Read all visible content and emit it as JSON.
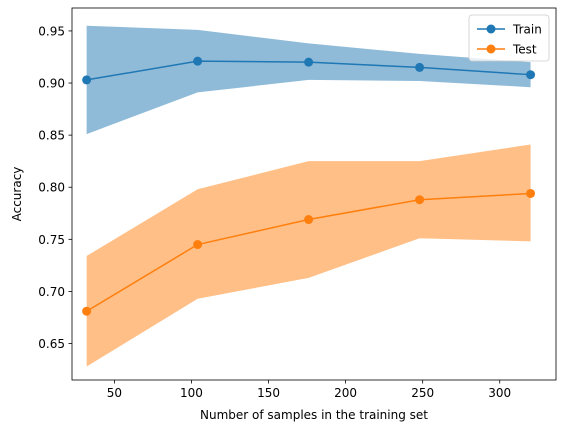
{
  "chart_data": {
    "type": "line",
    "title": "",
    "xlabel": "Number of samples in the training set",
    "ylabel": "Accuracy",
    "xlim": [
      22.5,
      336.5
    ],
    "ylim": [
      0.615,
      0.972
    ],
    "x": [
      32,
      104,
      176,
      248,
      320
    ],
    "xticks": [
      50,
      100,
      150,
      200,
      250,
      300
    ],
    "yticks": [
      0.65,
      0.7,
      0.75,
      0.8,
      0.85,
      0.9,
      0.95
    ],
    "ytick_labels": [
      "0.65",
      "0.70",
      "0.75",
      "0.80",
      "0.85",
      "0.90",
      "0.95"
    ],
    "legend_position": "top-right",
    "grid": false,
    "series": [
      {
        "name": "Train",
        "color": "#1f77b4",
        "band_color": "#1f77b4",
        "values": [
          0.903,
          0.921,
          0.92,
          0.915,
          0.908
        ],
        "band_lower": [
          0.851,
          0.891,
          0.903,
          0.902,
          0.896
        ],
        "band_upper": [
          0.955,
          0.951,
          0.938,
          0.928,
          0.92
        ]
      },
      {
        "name": "Test",
        "color": "#ff7f0e",
        "band_color": "#ff7f0e",
        "values": [
          0.681,
          0.745,
          0.769,
          0.788,
          0.794
        ],
        "band_lower": [
          0.628,
          0.693,
          0.713,
          0.751,
          0.748
        ],
        "band_upper": [
          0.734,
          0.798,
          0.825,
          0.825,
          0.841
        ]
      }
    ]
  }
}
